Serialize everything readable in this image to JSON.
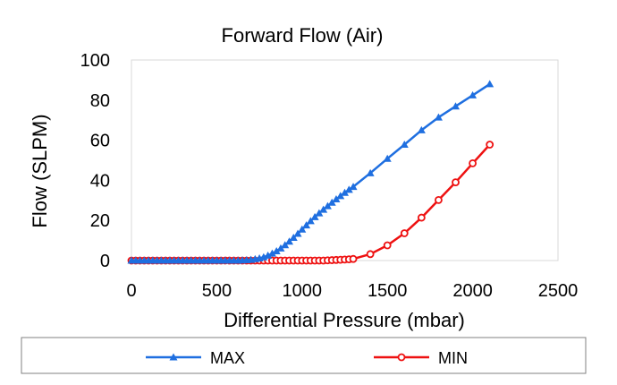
{
  "chart_data": {
    "type": "line",
    "title": "Forward Flow (Air)",
    "xlabel": "Differential Pressure (mbar)",
    "ylabel": "Flow (SLPM)",
    "xlim": [
      0,
      2500
    ],
    "ylim": [
      0,
      100
    ],
    "xticks": [
      "0",
      "500",
      "1000",
      "1500",
      "2000",
      "2500"
    ],
    "yticks": [
      "0",
      "20",
      "40",
      "60",
      "80",
      "100"
    ],
    "grid": false,
    "legend_position": "bottom",
    "series": [
      {
        "name": "MAX",
        "color": "#1f6fe0",
        "marker": "triangle",
        "x": [
          0,
          25,
          50,
          75,
          100,
          125,
          150,
          175,
          200,
          225,
          250,
          275,
          300,
          325,
          350,
          375,
          400,
          425,
          450,
          475,
          500,
          525,
          550,
          575,
          600,
          625,
          650,
          675,
          700,
          725,
          750,
          775,
          800,
          825,
          850,
          875,
          900,
          925,
          950,
          975,
          1000,
          1025,
          1050,
          1075,
          1100,
          1125,
          1150,
          1175,
          1200,
          1225,
          1250,
          1275,
          1300,
          1400,
          1500,
          1600,
          1700,
          1800,
          1900,
          2000,
          2100
        ],
        "y": [
          0,
          0,
          0,
          0,
          0,
          0,
          0,
          0,
          0,
          0,
          0,
          0,
          0,
          0,
          0,
          0,
          0,
          0,
          0,
          0,
          0,
          0,
          0,
          0,
          0,
          0,
          0.1,
          0.2,
          0.4,
          0.7,
          1.1,
          1.7,
          2.5,
          3.5,
          4.7,
          6.1,
          7.7,
          9.5,
          11.4,
          13.4,
          15.5,
          17.6,
          19.7,
          21.7,
          23.6,
          25.4,
          27.2,
          28.9,
          30.6,
          32.2,
          33.8,
          35.3,
          36.8,
          43.6,
          50.8,
          57.8,
          65.0,
          71.4,
          76.9,
          82.4,
          88.0
        ]
      },
      {
        "name": "MIN",
        "color": "#ee1111",
        "marker": "circle",
        "x": [
          0,
          25,
          50,
          75,
          100,
          125,
          150,
          175,
          200,
          225,
          250,
          275,
          300,
          325,
          350,
          375,
          400,
          425,
          450,
          475,
          500,
          525,
          550,
          575,
          600,
          625,
          650,
          675,
          700,
          725,
          750,
          775,
          800,
          825,
          850,
          875,
          900,
          925,
          950,
          975,
          1000,
          1025,
          1050,
          1075,
          1100,
          1125,
          1150,
          1175,
          1200,
          1225,
          1250,
          1275,
          1300,
          1400,
          1500,
          1600,
          1700,
          1800,
          1900,
          2000,
          2100
        ],
        "y": [
          0,
          0,
          0,
          0,
          0,
          0,
          0,
          0,
          0,
          0,
          0,
          0,
          0,
          0,
          0,
          0,
          0,
          0,
          0,
          0,
          0,
          0,
          0,
          0,
          0,
          0,
          0,
          0,
          0,
          0,
          0,
          0,
          0,
          0,
          0,
          0,
          0,
          0,
          0,
          0,
          0,
          0,
          0,
          0,
          0,
          0,
          0.1,
          0.2,
          0.3,
          0.4,
          0.5,
          0.6,
          0.8,
          3.2,
          7.6,
          13.6,
          21.4,
          30.2,
          39.0,
          48.5,
          57.8
        ]
      }
    ]
  }
}
